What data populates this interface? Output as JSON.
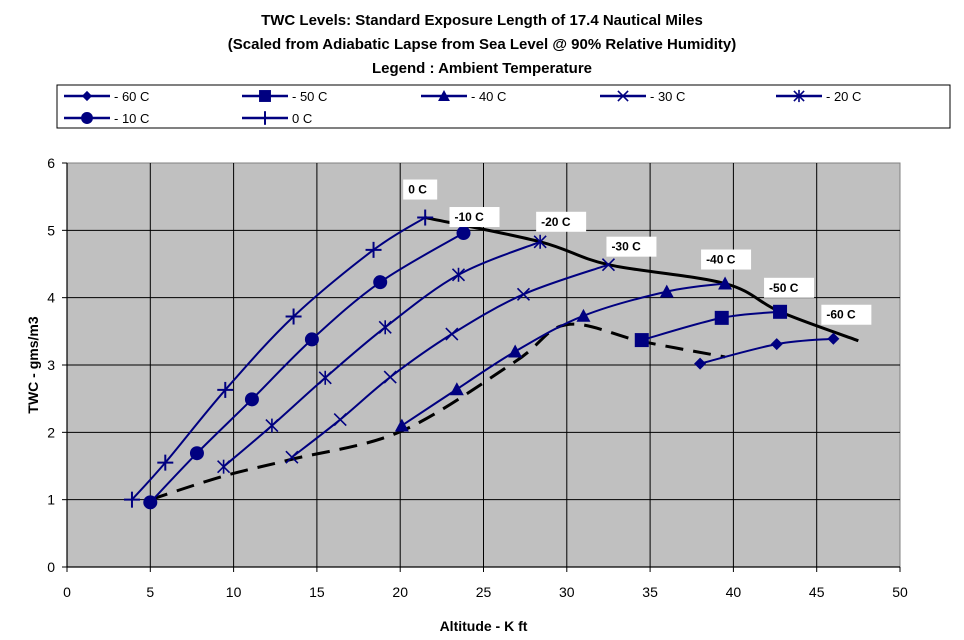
{
  "chart_data": {
    "type": "line",
    "title": "TWC Levels: Standard Exposure Length of 17.4 Nautical Miles",
    "subtitle": "(Scaled from Adiabatic Lapse from Sea Level @ 90% Relative Humidity)",
    "legend_title": "Legend : Ambient Temperature",
    "xlabel": "Altitude - K ft",
    "ylabel": "TWC - gms/m3",
    "xlim": [
      0,
      50
    ],
    "ylim": [
      0,
      6
    ],
    "xticks": [
      "0",
      "5",
      "10",
      "15",
      "20",
      "25",
      "30",
      "35",
      "40",
      "45",
      "50"
    ],
    "yticks": [
      "0",
      "1",
      "2",
      "3",
      "4",
      "5",
      "6"
    ],
    "grid": true,
    "legend_position": "top",
    "colors": {
      "series": "#000080",
      "envelope": "#000000",
      "plot_bg": "#c0c0c0"
    },
    "series": [
      {
        "name": "- 60 C",
        "marker": "diamond",
        "x": [
          38,
          42.6,
          46
        ],
        "y": [
          3.02,
          3.31,
          3.39
        ]
      },
      {
        "name": "- 50 C",
        "marker": "square",
        "x": [
          34.5,
          39.3,
          42.8
        ],
        "y": [
          3.37,
          3.7,
          3.79
        ]
      },
      {
        "name": "- 40 C",
        "marker": "triangle",
        "x": [
          20.1,
          23.4,
          26.9,
          31,
          36,
          39.5
        ],
        "y": [
          2.1,
          2.64,
          3.2,
          3.73,
          4.09,
          4.21
        ]
      },
      {
        "name": "- 30 C",
        "marker": "x",
        "x": [
          13.5,
          16.4,
          19.4,
          23.1,
          27.4,
          32.5
        ],
        "y": [
          1.63,
          2.19,
          2.82,
          3.46,
          4.05,
          4.49
        ]
      },
      {
        "name": "- 20 C",
        "marker": "star",
        "x": [
          9.4,
          12.3,
          15.5,
          19.1,
          23.5,
          28.4
        ],
        "y": [
          1.49,
          2.1,
          2.81,
          3.56,
          4.34,
          4.83
        ]
      },
      {
        "name": "- 10 C",
        "marker": "circle",
        "x": [
          5,
          7.8,
          11.1,
          14.7,
          18.8,
          23.8
        ],
        "y": [
          0.96,
          1.69,
          2.49,
          3.38,
          4.23,
          4.96
        ]
      },
      {
        "name": "0 C",
        "marker": "plus",
        "x": [
          3.9,
          5.9,
          9.5,
          13.6,
          18.4,
          21.5
        ],
        "y": [
          1.0,
          1.55,
          2.63,
          3.72,
          4.71,
          5.19
        ]
      }
    ],
    "envelopes": [
      {
        "style": "solid",
        "x": [
          21.5,
          28.4,
          32.5,
          39.5,
          42.8,
          47.5
        ],
        "y": [
          5.19,
          4.83,
          4.49,
          4.21,
          3.79,
          3.36
        ]
      },
      {
        "style": "dashed",
        "x": [
          5,
          9.4,
          13.5,
          20.1,
          26.9,
          30,
          34.5,
          39.5
        ],
        "y": [
          1.0,
          1.35,
          1.6,
          2.02,
          3.05,
          3.6,
          3.35,
          3.12
        ]
      }
    ],
    "annotations": [
      {
        "text": "0 C",
        "x": 21.5,
        "y": 5.19
      },
      {
        "text": "-10 C",
        "x": 23.8,
        "y": 4.96
      },
      {
        "text": "-20 C",
        "x": 28.4,
        "y": 4.83
      },
      {
        "text": "-30 C",
        "x": 32.5,
        "y": 4.49
      },
      {
        "text": "-40 C",
        "x": 39.5,
        "y": 4.21
      },
      {
        "text": "-50 C",
        "x": 42.8,
        "y": 3.79
      },
      {
        "text": "-60 C",
        "x": 46,
        "y": 3.39
      }
    ]
  }
}
